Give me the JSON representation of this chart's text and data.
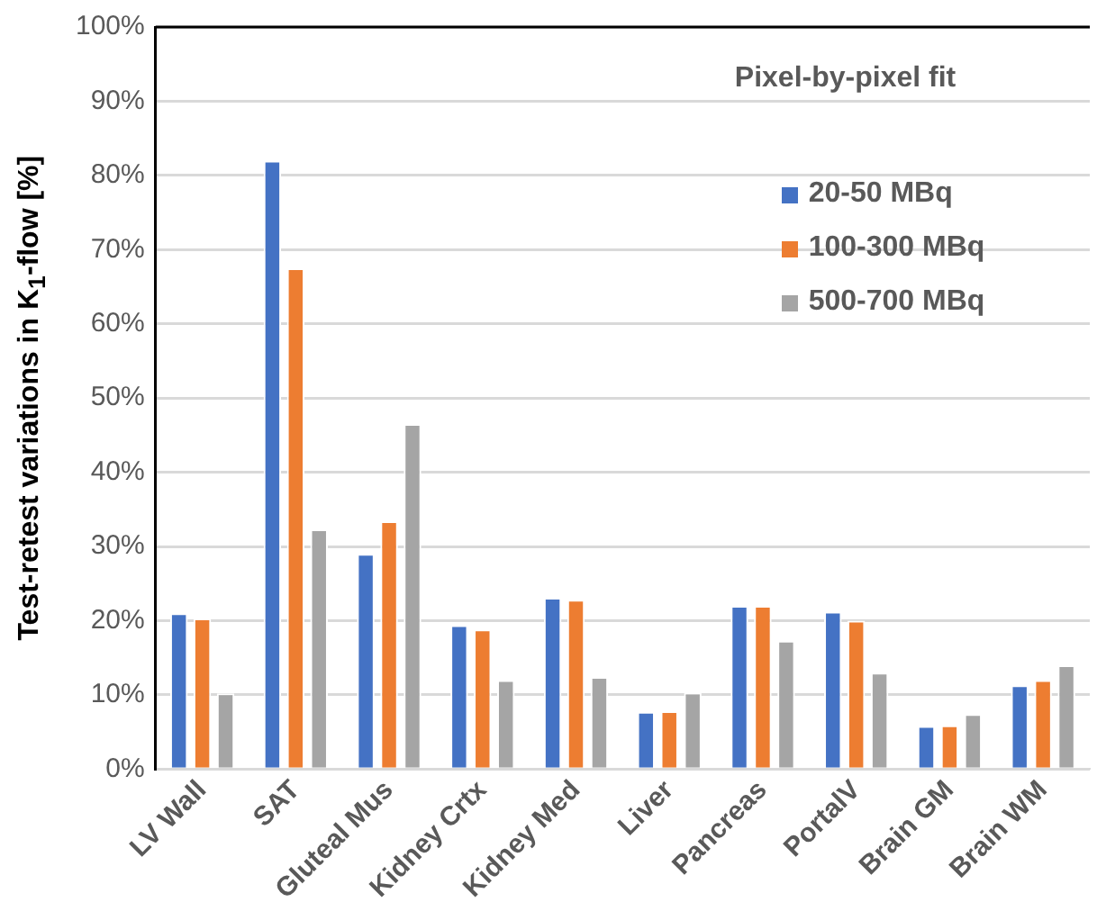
{
  "chart_data": {
    "type": "bar",
    "title": "Pixel-by-pixel fit",
    "ylabel": "Test-retest variations in K$_{1}$-flow [%]",
    "categories": [
      "LV Wall",
      "SAT",
      "Gluteal Mus",
      "Kidney Crtx",
      "Kidney Med",
      "Liver",
      "Pancreas",
      "PortalV",
      "Brain GM",
      "Brain WM"
    ],
    "series": [
      {
        "name": "20-50 MBq",
        "color": "#4472c4",
        "values": [
          21,
          82,
          29,
          19.4,
          23.1,
          7.7,
          22,
          21.2,
          5.8,
          11.3
        ]
      },
      {
        "name": "100-300 MBq",
        "color": "#ed7d31",
        "values": [
          20.3,
          67.5,
          33.4,
          18.8,
          22.8,
          7.8,
          22,
          20,
          5.9,
          12
        ]
      },
      {
        "name": "500-700 MBq",
        "color": "#a5a5a5",
        "values": [
          10.2,
          32.3,
          46.5,
          12,
          12.4,
          10.3,
          17.3,
          13,
          7.4,
          14
        ]
      }
    ],
    "ylim": [
      0,
      100
    ],
    "yticks": [
      {
        "value": 0,
        "label": "0%"
      },
      {
        "value": 10,
        "label": "10%"
      },
      {
        "value": 20,
        "label": "20%"
      },
      {
        "value": 30,
        "label": "30%"
      },
      {
        "value": 40,
        "label": "40%"
      },
      {
        "value": 50,
        "label": "50%"
      },
      {
        "value": 60,
        "label": "60%"
      },
      {
        "value": 70,
        "label": "70%"
      },
      {
        "value": 80,
        "label": "80%"
      },
      {
        "value": 90,
        "label": "90%"
      },
      {
        "value": 100,
        "label": "100%"
      }
    ],
    "grid": "y",
    "legend": "top right"
  }
}
